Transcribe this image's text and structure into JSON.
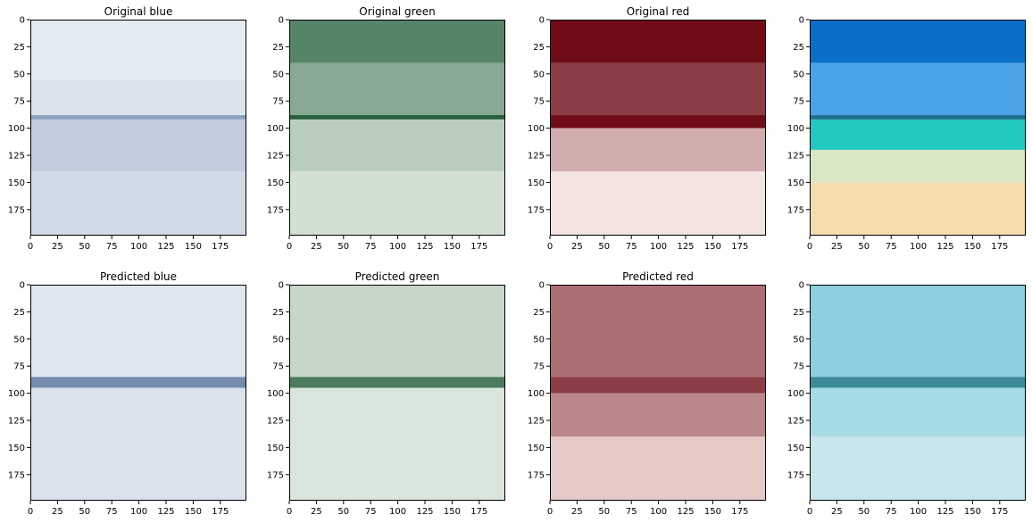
{
  "chart_data": [
    {
      "type": "heatmap",
      "title": "Original blue",
      "colormap": "Blues",
      "xlim": [
        0,
        199
      ],
      "ylim": [
        199,
        0
      ],
      "xticks": [
        0,
        25,
        50,
        75,
        100,
        125,
        150,
        175
      ],
      "yticks": [
        0,
        25,
        50,
        75,
        100,
        125,
        150,
        175
      ],
      "xlabel": "",
      "ylabel": "",
      "grid": false,
      "bands": [
        {
          "y": [
            0,
            55
          ],
          "level": 0.08
        },
        {
          "y": [
            55,
            88
          ],
          "level": 0.12
        },
        {
          "y": [
            88,
            92
          ],
          "level": 0.45
        },
        {
          "y": [
            92,
            140
          ],
          "level": 0.22
        },
        {
          "y": [
            140,
            199
          ],
          "level": 0.16
        }
      ]
    },
    {
      "type": "heatmap",
      "title": "Original green",
      "colormap": "Greens",
      "xlim": [
        0,
        199
      ],
      "ylim": [
        199,
        0
      ],
      "xticks": [
        0,
        25,
        50,
        75,
        100,
        125,
        150,
        175
      ],
      "yticks": [
        0,
        25,
        50,
        75,
        100,
        125,
        150,
        175
      ],
      "xlabel": "",
      "ylabel": "",
      "grid": false,
      "bands": [
        {
          "y": [
            0,
            40
          ],
          "level": 0.65
        },
        {
          "y": [
            40,
            88
          ],
          "level": 0.45
        },
        {
          "y": [
            88,
            92
          ],
          "level": 0.85
        },
        {
          "y": [
            92,
            140
          ],
          "level": 0.25
        },
        {
          "y": [
            140,
            199
          ],
          "level": 0.15
        }
      ]
    },
    {
      "type": "heatmap",
      "title": "Original red",
      "colormap": "Reds",
      "xlim": [
        0,
        199
      ],
      "ylim": [
        199,
        0
      ],
      "xticks": [
        0,
        25,
        50,
        75,
        100,
        125,
        150,
        175
      ],
      "yticks": [
        0,
        25,
        50,
        75,
        100,
        125,
        150,
        175
      ],
      "xlabel": "",
      "ylabel": "",
      "grid": false,
      "bands": [
        {
          "y": [
            0,
            40
          ],
          "level": 0.95
        },
        {
          "y": [
            40,
            88
          ],
          "level": 0.75
        },
        {
          "y": [
            88,
            100
          ],
          "level": 0.95
        },
        {
          "y": [
            100,
            140
          ],
          "level": 0.3
        },
        {
          "y": [
            140,
            199
          ],
          "level": 0.07
        }
      ]
    },
    {
      "type": "heatmap",
      "title": "",
      "colormap": "RGB",
      "xlim": [
        0,
        199
      ],
      "ylim": [
        199,
        0
      ],
      "xticks": [
        0,
        25,
        50,
        75,
        100,
        125,
        150,
        175
      ],
      "yticks": [
        0,
        25,
        50,
        75,
        100,
        125,
        150,
        175
      ],
      "xlabel": "",
      "ylabel": "",
      "grid": false,
      "bands": [
        {
          "y": [
            0,
            40
          ],
          "color": "#0a6fc9"
        },
        {
          "y": [
            40,
            88
          ],
          "color": "#4aa3e6"
        },
        {
          "y": [
            88,
            92
          ],
          "color": "#1f6f8f"
        },
        {
          "y": [
            92,
            120
          ],
          "color": "#22c7c0"
        },
        {
          "y": [
            120,
            150
          ],
          "color": "#d9e8c4"
        },
        {
          "y": [
            150,
            199
          ],
          "color": "#f5ddb0"
        }
      ]
    },
    {
      "type": "heatmap",
      "title": "Predicted blue",
      "colormap": "Blues",
      "xlim": [
        0,
        199
      ],
      "ylim": [
        199,
        0
      ],
      "xticks": [
        0,
        25,
        50,
        75,
        100,
        125,
        150,
        175
      ],
      "yticks": [
        0,
        25,
        50,
        75,
        100,
        125,
        150,
        175
      ],
      "xlabel": "",
      "ylabel": "",
      "grid": false,
      "bands": [
        {
          "y": [
            0,
            85
          ],
          "level": 0.1
        },
        {
          "y": [
            85,
            95
          ],
          "level": 0.55
        },
        {
          "y": [
            95,
            199
          ],
          "level": 0.12
        }
      ]
    },
    {
      "type": "heatmap",
      "title": "Predicted green",
      "colormap": "Greens",
      "xlim": [
        0,
        199
      ],
      "ylim": [
        199,
        0
      ],
      "xticks": [
        0,
        25,
        50,
        75,
        100,
        125,
        150,
        175
      ],
      "yticks": [
        0,
        25,
        50,
        75,
        100,
        125,
        150,
        175
      ],
      "xlabel": "",
      "ylabel": "",
      "grid": false,
      "bands": [
        {
          "y": [
            0,
            85
          ],
          "level": 0.2
        },
        {
          "y": [
            85,
            95
          ],
          "level": 0.7
        },
        {
          "y": [
            95,
            199
          ],
          "level": 0.12
        }
      ]
    },
    {
      "type": "heatmap",
      "title": "Predicted red",
      "colormap": "Reds",
      "xlim": [
        0,
        199
      ],
      "ylim": [
        199,
        0
      ],
      "xticks": [
        0,
        25,
        50,
        75,
        100,
        125,
        150,
        175
      ],
      "yticks": [
        0,
        25,
        50,
        75,
        100,
        125,
        150,
        175
      ],
      "xlabel": "",
      "ylabel": "",
      "grid": false,
      "bands": [
        {
          "y": [
            0,
            85
          ],
          "level": 0.55
        },
        {
          "y": [
            85,
            100
          ],
          "level": 0.75
        },
        {
          "y": [
            100,
            140
          ],
          "level": 0.45
        },
        {
          "y": [
            140,
            199
          ],
          "level": 0.18
        }
      ]
    },
    {
      "type": "heatmap",
      "title": "",
      "colormap": "RGB",
      "xlim": [
        0,
        199
      ],
      "ylim": [
        199,
        0
      ],
      "xticks": [
        0,
        25,
        50,
        75,
        100,
        125,
        150,
        175
      ],
      "yticks": [
        0,
        25,
        50,
        75,
        100,
        125,
        150,
        175
      ],
      "xlabel": "",
      "ylabel": "",
      "grid": false,
      "bands": [
        {
          "y": [
            0,
            85
          ],
          "color": "#8ecfe0"
        },
        {
          "y": [
            85,
            95
          ],
          "color": "#3d8a9a"
        },
        {
          "y": [
            95,
            140
          ],
          "color": "#a6dbe6"
        },
        {
          "y": [
            140,
            199
          ],
          "color": "#c6e6ec"
        }
      ]
    }
  ]
}
